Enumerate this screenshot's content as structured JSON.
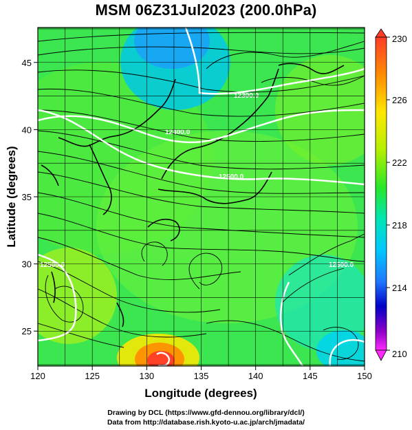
{
  "title": "MSM 06Z31Jul2023 (200.0hPa)",
  "map": {
    "xlabel": "Longitude (degrees)",
    "ylabel": "Latitude  (degrees)",
    "lon_range": [
      120,
      150
    ],
    "lat_range": [
      22.4,
      47.6
    ],
    "lon_ticks": [
      120,
      125,
      130,
      135,
      140,
      145,
      150
    ],
    "lat_ticks": [
      25,
      30,
      35,
      40,
      45
    ],
    "grid": true,
    "field": "wind streamlines over temperature shading",
    "contours": [
      {
        "label": "12300.0",
        "color": "#ffffff"
      },
      {
        "label": "12400.0",
        "color": "#ffffff"
      },
      {
        "label": "12500.0",
        "color": "#ffffff"
      },
      {
        "label": "12500.0",
        "color": "#ffffff"
      },
      {
        "label": "12500.0",
        "color": "#ffffff"
      }
    ]
  },
  "colorbar": {
    "min": 210,
    "max": 230,
    "ticks": [
      230,
      226,
      222,
      218,
      214,
      210
    ],
    "colors": [
      "#ff2a2a",
      "#ff7f00",
      "#ffe600",
      "#b4f000",
      "#28e628",
      "#00e6b4",
      "#00c8ff",
      "#1e78ff",
      "#0000c8",
      "#8c00c8",
      "#ff00ff"
    ]
  },
  "credits": {
    "line1": "Drawing by DCL (https://www.gfd-dennou.org/library/dcl/)",
    "line2": "Data from http://database.rish.kyoto-u.ac.jp/arch/jmadata/"
  }
}
